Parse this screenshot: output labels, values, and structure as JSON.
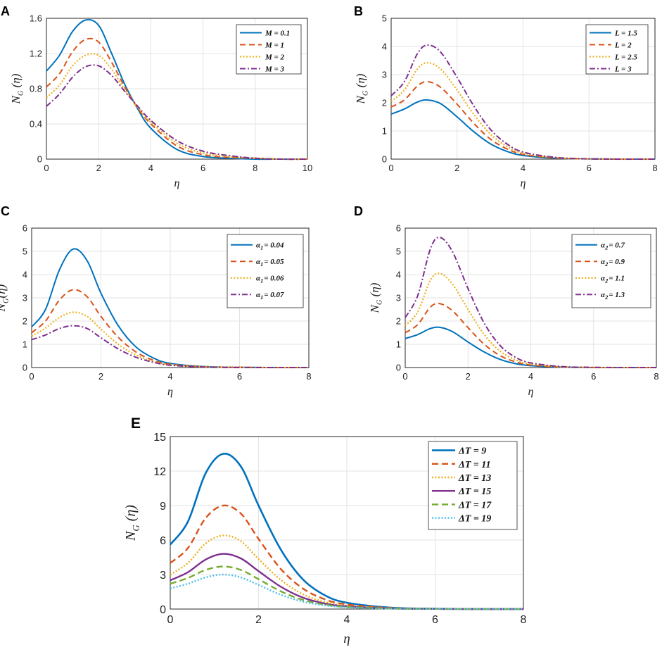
{
  "colors": {
    "s1": "#0072BD",
    "s2": "#D95319",
    "s3": "#EDB120",
    "s4": "#7E2F8E",
    "s5": "#77AC30",
    "s6": "#4DBEEE"
  },
  "chart_data": [
    {
      "id": "A",
      "panel_label": "A",
      "type": "line",
      "xlabel": "η",
      "ylabel_main": "N",
      "ylabel_sub": "G",
      "ylabel_tail": " (η)",
      "xlim": [
        0,
        10
      ],
      "ylim": [
        0,
        1.6
      ],
      "xticks": [
        "0",
        "2",
        "4",
        "6",
        "8",
        "10"
      ],
      "yticks": [
        "0",
        "0.4",
        "0.8",
        "1.2",
        "1.6"
      ],
      "x": [
        0,
        0.5,
        1,
        1.5,
        2,
        2.5,
        3,
        3.5,
        4,
        5,
        6,
        7,
        8,
        9,
        10
      ],
      "series": [
        {
          "name": "M = 0.1",
          "legend_main": "M = 0.1",
          "values": [
            1.0,
            1.18,
            1.45,
            1.58,
            1.52,
            1.2,
            0.85,
            0.57,
            0.35,
            0.11,
            0.03,
            0.01,
            0.0,
            0.0,
            0.0
          ]
        },
        {
          "name": "M = 1",
          "legend_main": "M = 1",
          "values": [
            0.82,
            0.97,
            1.22,
            1.36,
            1.33,
            1.1,
            0.82,
            0.58,
            0.4,
            0.15,
            0.05,
            0.02,
            0.01,
            0.0,
            0.0
          ]
        },
        {
          "name": "M = 2",
          "legend_main": "M = 2",
          "values": [
            0.7,
            0.84,
            1.06,
            1.18,
            1.18,
            1.02,
            0.79,
            0.59,
            0.42,
            0.18,
            0.07,
            0.03,
            0.01,
            0.0,
            0.0
          ]
        },
        {
          "name": "M = 3",
          "legend_main": "M = 3",
          "values": [
            0.6,
            0.74,
            0.93,
            1.05,
            1.06,
            0.95,
            0.77,
            0.6,
            0.44,
            0.21,
            0.09,
            0.04,
            0.01,
            0.0,
            0.0
          ]
        }
      ]
    },
    {
      "id": "B",
      "panel_label": "B",
      "type": "line",
      "xlabel": "η",
      "ylabel_main": "N",
      "ylabel_sub": "G",
      "ylabel_tail": " (η)",
      "xlim": [
        0,
        8
      ],
      "ylim": [
        0,
        5
      ],
      "xticks": [
        "0",
        "2",
        "4",
        "6",
        "8"
      ],
      "yticks": [
        "0",
        "1",
        "2",
        "3",
        "4",
        "5"
      ],
      "x": [
        0,
        0.4,
        0.8,
        1.1,
        1.5,
        2,
        2.5,
        3,
        3.5,
        4,
        5,
        6,
        7,
        8
      ],
      "series": [
        {
          "name": "L = 1.5",
          "legend_main": "L = 1.5",
          "values": [
            1.6,
            1.78,
            2.03,
            2.1,
            1.97,
            1.5,
            0.98,
            0.55,
            0.28,
            0.13,
            0.03,
            0.01,
            0.0,
            0.0
          ]
        },
        {
          "name": "L = 2",
          "legend_main": "L = 2",
          "values": [
            1.85,
            2.1,
            2.6,
            2.75,
            2.55,
            1.95,
            1.28,
            0.72,
            0.37,
            0.17,
            0.04,
            0.01,
            0.0,
            0.0
          ]
        },
        {
          "name": "L = 2.5",
          "legend_main": "L = 2.5",
          "values": [
            2.05,
            2.45,
            3.2,
            3.42,
            3.2,
            2.45,
            1.6,
            0.9,
            0.46,
            0.21,
            0.05,
            0.01,
            0.0,
            0.0
          ]
        },
        {
          "name": "L = 3",
          "legend_main": "L = 3",
          "values": [
            2.25,
            2.75,
            3.75,
            4.05,
            3.8,
            2.9,
            1.9,
            1.07,
            0.55,
            0.25,
            0.06,
            0.01,
            0.0,
            0.0
          ]
        }
      ]
    },
    {
      "id": "C",
      "panel_label": "C",
      "type": "line",
      "xlabel": "η",
      "ylabel_main": "N",
      "ylabel_sub": "G",
      "ylabel_tail": "(η)",
      "xlim": [
        0,
        8
      ],
      "ylim": [
        0,
        6
      ],
      "xticks": [
        "0",
        "2",
        "4",
        "6",
        "8"
      ],
      "yticks": [
        "0",
        "1",
        "2",
        "3",
        "4",
        "5",
        "6"
      ],
      "x": [
        0,
        0.4,
        0.8,
        1.2,
        1.6,
        2,
        2.5,
        3,
        3.5,
        4,
        5,
        6,
        7,
        8
      ],
      "series": [
        {
          "name": "α1 = 0.04",
          "legend_main": "α",
          "legend_sub": "1",
          "legend_tail": "= 0.04",
          "values": [
            1.75,
            2.5,
            4.2,
            5.1,
            4.6,
            3.2,
            1.8,
            0.9,
            0.42,
            0.18,
            0.04,
            0.01,
            0.0,
            0.0
          ]
        },
        {
          "name": "α1 = 0.05",
          "legend_main": "α",
          "legend_sub": "1",
          "legend_tail": "= 0.05",
          "values": [
            1.5,
            2.0,
            2.9,
            3.35,
            3.05,
            2.2,
            1.3,
            0.68,
            0.32,
            0.14,
            0.03,
            0.01,
            0.0,
            0.0
          ]
        },
        {
          "name": "α1 = 0.06",
          "legend_main": "α",
          "legend_sub": "1",
          "legend_tail": "= 0.06",
          "values": [
            1.35,
            1.7,
            2.15,
            2.38,
            2.2,
            1.65,
            1.0,
            0.55,
            0.27,
            0.12,
            0.03,
            0.01,
            0.0,
            0.0
          ]
        },
        {
          "name": "α1 = 0.07",
          "legend_main": "α",
          "legend_sub": "1",
          "legend_tail": "= 0.07",
          "values": [
            1.2,
            1.4,
            1.68,
            1.8,
            1.68,
            1.28,
            0.8,
            0.45,
            0.23,
            0.1,
            0.02,
            0.0,
            0.0,
            0.0
          ]
        }
      ]
    },
    {
      "id": "D",
      "panel_label": "D",
      "type": "line",
      "xlabel": "η",
      "ylabel_main": "N",
      "ylabel_sub": "G",
      "ylabel_tail": " (η)",
      "xlim": [
        0,
        8
      ],
      "ylim": [
        0,
        6
      ],
      "xticks": [
        "0",
        "2",
        "4",
        "6",
        "8"
      ],
      "yticks": [
        "0",
        "1",
        "2",
        "3",
        "4",
        "5",
        "6"
      ],
      "x": [
        0,
        0.4,
        0.8,
        1.1,
        1.5,
        2,
        2.5,
        3,
        3.5,
        4,
        5,
        6,
        7,
        8
      ],
      "series": [
        {
          "name": "α2 = 0.7",
          "legend_main": "α",
          "legend_sub": "2",
          "legend_tail": "= 0.7",
          "values": [
            1.25,
            1.42,
            1.68,
            1.73,
            1.55,
            1.1,
            0.68,
            0.36,
            0.17,
            0.08,
            0.02,
            0.0,
            0.0,
            0.0
          ]
        },
        {
          "name": "α2 = 0.9",
          "legend_main": "α",
          "legend_sub": "2",
          "legend_tail": "= 0.9",
          "values": [
            1.5,
            1.85,
            2.6,
            2.75,
            2.45,
            1.72,
            1.02,
            0.53,
            0.25,
            0.11,
            0.02,
            0.0,
            0.0,
            0.0
          ]
        },
        {
          "name": "α2 = 1.1",
          "legend_main": "α",
          "legend_sub": "2",
          "legend_tail": "= 1.1",
          "values": [
            1.8,
            2.4,
            3.75,
            4.05,
            3.6,
            2.5,
            1.45,
            0.73,
            0.34,
            0.15,
            0.03,
            0.0,
            0.0,
            0.0
          ]
        },
        {
          "name": "α2 = 1.3",
          "legend_main": "α",
          "legend_sub": "2",
          "legend_tail": "= 1.3",
          "values": [
            2.15,
            3.1,
            5.1,
            5.6,
            5.0,
            3.4,
            1.95,
            0.98,
            0.45,
            0.2,
            0.04,
            0.01,
            0.0,
            0.0
          ]
        }
      ]
    },
    {
      "id": "E",
      "panel_label": "E",
      "type": "line",
      "xlabel": "η",
      "ylabel_main": "N",
      "ylabel_sub": "G",
      "ylabel_tail": " (η)",
      "xlim": [
        0,
        8
      ],
      "ylim": [
        0,
        15
      ],
      "xticks": [
        "0",
        "2",
        "4",
        "6",
        "8"
      ],
      "yticks": [
        "0",
        "3",
        "6",
        "9",
        "12",
        "15"
      ],
      "x": [
        0,
        0.4,
        0.8,
        1.2,
        1.6,
        2,
        2.5,
        3,
        3.5,
        4,
        5,
        6,
        7,
        8
      ],
      "series": [
        {
          "name": "ΔT = 9",
          "legend_main": "ΔT = 9",
          "values": [
            5.6,
            7.6,
            11.8,
            13.5,
            12.4,
            9.0,
            5.2,
            2.6,
            1.2,
            0.55,
            0.12,
            0.03,
            0.0,
            0.0
          ]
        },
        {
          "name": "ΔT = 11",
          "legend_main": "ΔT = 11",
          "values": [
            4.0,
            5.3,
            7.9,
            9.0,
            8.3,
            6.1,
            3.5,
            1.8,
            0.85,
            0.4,
            0.09,
            0.02,
            0.0,
            0.0
          ]
        },
        {
          "name": "ΔT = 13",
          "legend_main": "ΔT = 13",
          "values": [
            3.0,
            4.0,
            5.7,
            6.4,
            5.9,
            4.35,
            2.55,
            1.3,
            0.62,
            0.3,
            0.07,
            0.01,
            0.0,
            0.0
          ]
        },
        {
          "name": "ΔT = 15",
          "legend_main": "ΔT = 15",
          "values": [
            2.5,
            3.2,
            4.3,
            4.8,
            4.4,
            3.3,
            1.95,
            1.0,
            0.48,
            0.23,
            0.05,
            0.01,
            0.0,
            0.0
          ]
        },
        {
          "name": "ΔT = 17",
          "legend_main": "ΔT = 17",
          "values": [
            2.2,
            2.7,
            3.4,
            3.7,
            3.4,
            2.6,
            1.55,
            0.8,
            0.39,
            0.18,
            0.04,
            0.01,
            0.0,
            0.0
          ]
        },
        {
          "name": "ΔT = 19",
          "legend_main": "ΔT = 19",
          "values": [
            1.8,
            2.2,
            2.75,
            3.0,
            2.75,
            2.1,
            1.25,
            0.65,
            0.32,
            0.15,
            0.03,
            0.01,
            0.0,
            0.0
          ]
        }
      ]
    }
  ]
}
